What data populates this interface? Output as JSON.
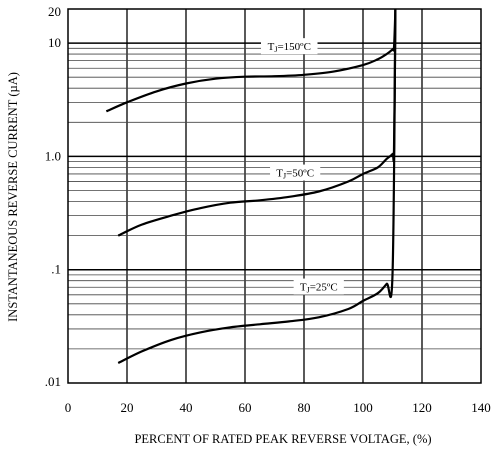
{
  "chart_data": {
    "type": "line",
    "title": "",
    "xlabel": "PERCENT OF RATED PEAK REVERSE VOLTAGE, (%)",
    "ylabel": "INSTANTANEOUS REVERSE CURRENT (µA)",
    "xlim": [
      0,
      140
    ],
    "ylim": [
      0.01,
      20
    ],
    "yscale": "log",
    "grid": true,
    "x_tick_labels": [
      "0",
      "20",
      "40",
      "60",
      "80",
      "100",
      "120",
      "140"
    ],
    "y_tick_labels": [
      {
        "value": 0.01,
        "label": ".01"
      },
      {
        "value": 0.1,
        "label": ".1"
      },
      {
        "value": 1.0,
        "label": "1.0"
      },
      {
        "value": 10,
        "label": "10"
      },
      {
        "value": 20,
        "label": "20"
      }
    ],
    "series": [
      {
        "name": "TJ=150°C",
        "label_parts": {
          "prefix": "T",
          "sub": "J",
          "suffix": "=150ºC"
        },
        "x": [
          13,
          20,
          30,
          40,
          50,
          60,
          70,
          80,
          90,
          100,
          105,
          108,
          110,
          110.5,
          111
        ],
        "y": [
          2.5,
          3.0,
          3.75,
          4.4,
          4.85,
          5.05,
          5.1,
          5.25,
          5.6,
          6.4,
          7.2,
          8.0,
          8.8,
          9.2,
          20
        ]
      },
      {
        "name": "TJ=50°C",
        "label_parts": {
          "prefix": "T",
          "sub": "J",
          "suffix": "=50ºC"
        },
        "x": [
          17,
          25,
          35,
          45,
          55,
          65,
          75,
          85,
          95,
          100,
          105,
          108,
          110,
          110.5,
          111
        ],
        "y": [
          0.2,
          0.25,
          0.3,
          0.35,
          0.39,
          0.41,
          0.44,
          0.49,
          0.6,
          0.7,
          0.8,
          0.95,
          1.05,
          1.15,
          20
        ]
      },
      {
        "name": "TJ=25°C",
        "label_parts": {
          "prefix": "T",
          "sub": "J",
          "suffix": "=25ºC"
        },
        "x": [
          17,
          25,
          35,
          45,
          55,
          65,
          75,
          85,
          95,
          100,
          105,
          108,
          110,
          111
        ],
        "y": [
          0.015,
          0.019,
          0.024,
          0.028,
          0.031,
          0.033,
          0.035,
          0.038,
          0.045,
          0.053,
          0.062,
          0.075,
          0.09,
          20
        ]
      }
    ]
  }
}
